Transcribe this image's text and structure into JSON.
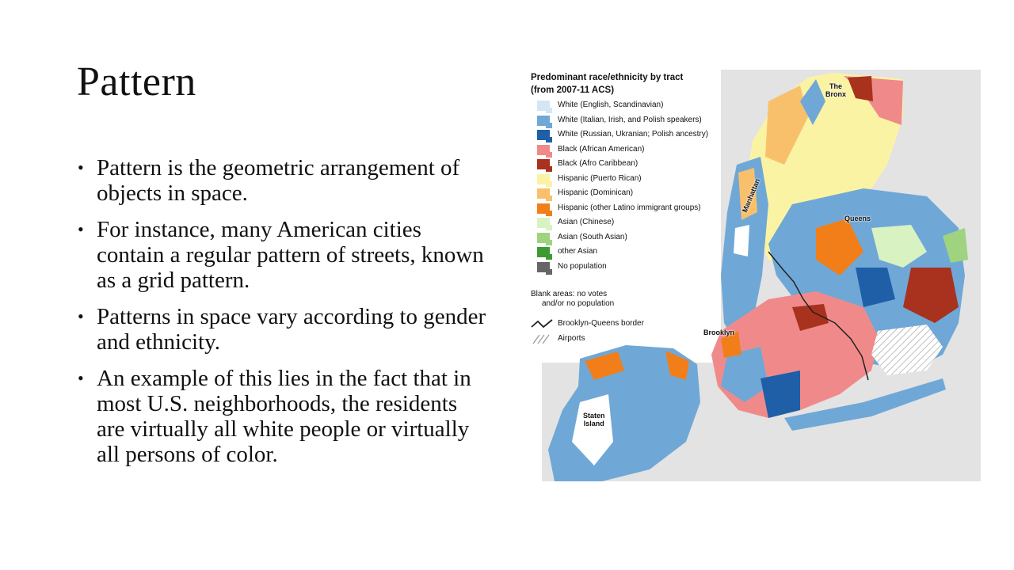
{
  "slide": {
    "title": "Pattern",
    "bullets": [
      "Pattern is the geometric arrangement of objects in space.",
      "For instance, many American cities contain a regular pattern of streets, known as a grid pattern.",
      "Patterns in space vary according to gender and ethnicity.",
      "An example of this lies in the fact that in most U.S. neighborhoods, the residents are virtually all white people or virtually all persons of color."
    ]
  },
  "map": {
    "title_line1": "Predominant race/ethnicity by tract",
    "title_line2": "(from 2007-11 ACS)",
    "legend": [
      {
        "label": "White (English, Scandinavian)",
        "color": "#d4e6f3"
      },
      {
        "label": "White (Italian, Irish, and Polish speakers)",
        "color": "#6fa8d6"
      },
      {
        "label": "White (Russian, Ukranian; Polish ancestry)",
        "color": "#1f5fa8"
      },
      {
        "label": "Black (African American)",
        "color": "#f08a8a"
      },
      {
        "label": "Black (Afro Caribbean)",
        "color": "#a8321e"
      },
      {
        "label": "Hispanic (Puerto Rican)",
        "color": "#fbf3a4"
      },
      {
        "label": "Hispanic (Dominican)",
        "color": "#f9c06b"
      },
      {
        "label": "Hispanic (other Latino immigrant groups)",
        "color": "#f27e1a"
      },
      {
        "label": "Asian (Chinese)",
        "color": "#d9f2c2"
      },
      {
        "label": "Asian (South Asian)",
        "color": "#9fd37f"
      },
      {
        "label": "other Asian",
        "color": "#3e9b32"
      },
      {
        "label": "No population",
        "color": "#666666"
      }
    ],
    "blank_note_line1": "Blank areas: no votes",
    "blank_note_line2": "and/or no population",
    "border_label": "Brooklyn-Queens border",
    "airports_label": "Airports",
    "places": {
      "bronx_line1": "The",
      "bronx_line2": "Bronx",
      "manhattan": "Manhattan",
      "queens": "Queens",
      "brooklyn": "Brooklyn",
      "staten_line1": "Staten",
      "staten_line2": "Island"
    }
  }
}
